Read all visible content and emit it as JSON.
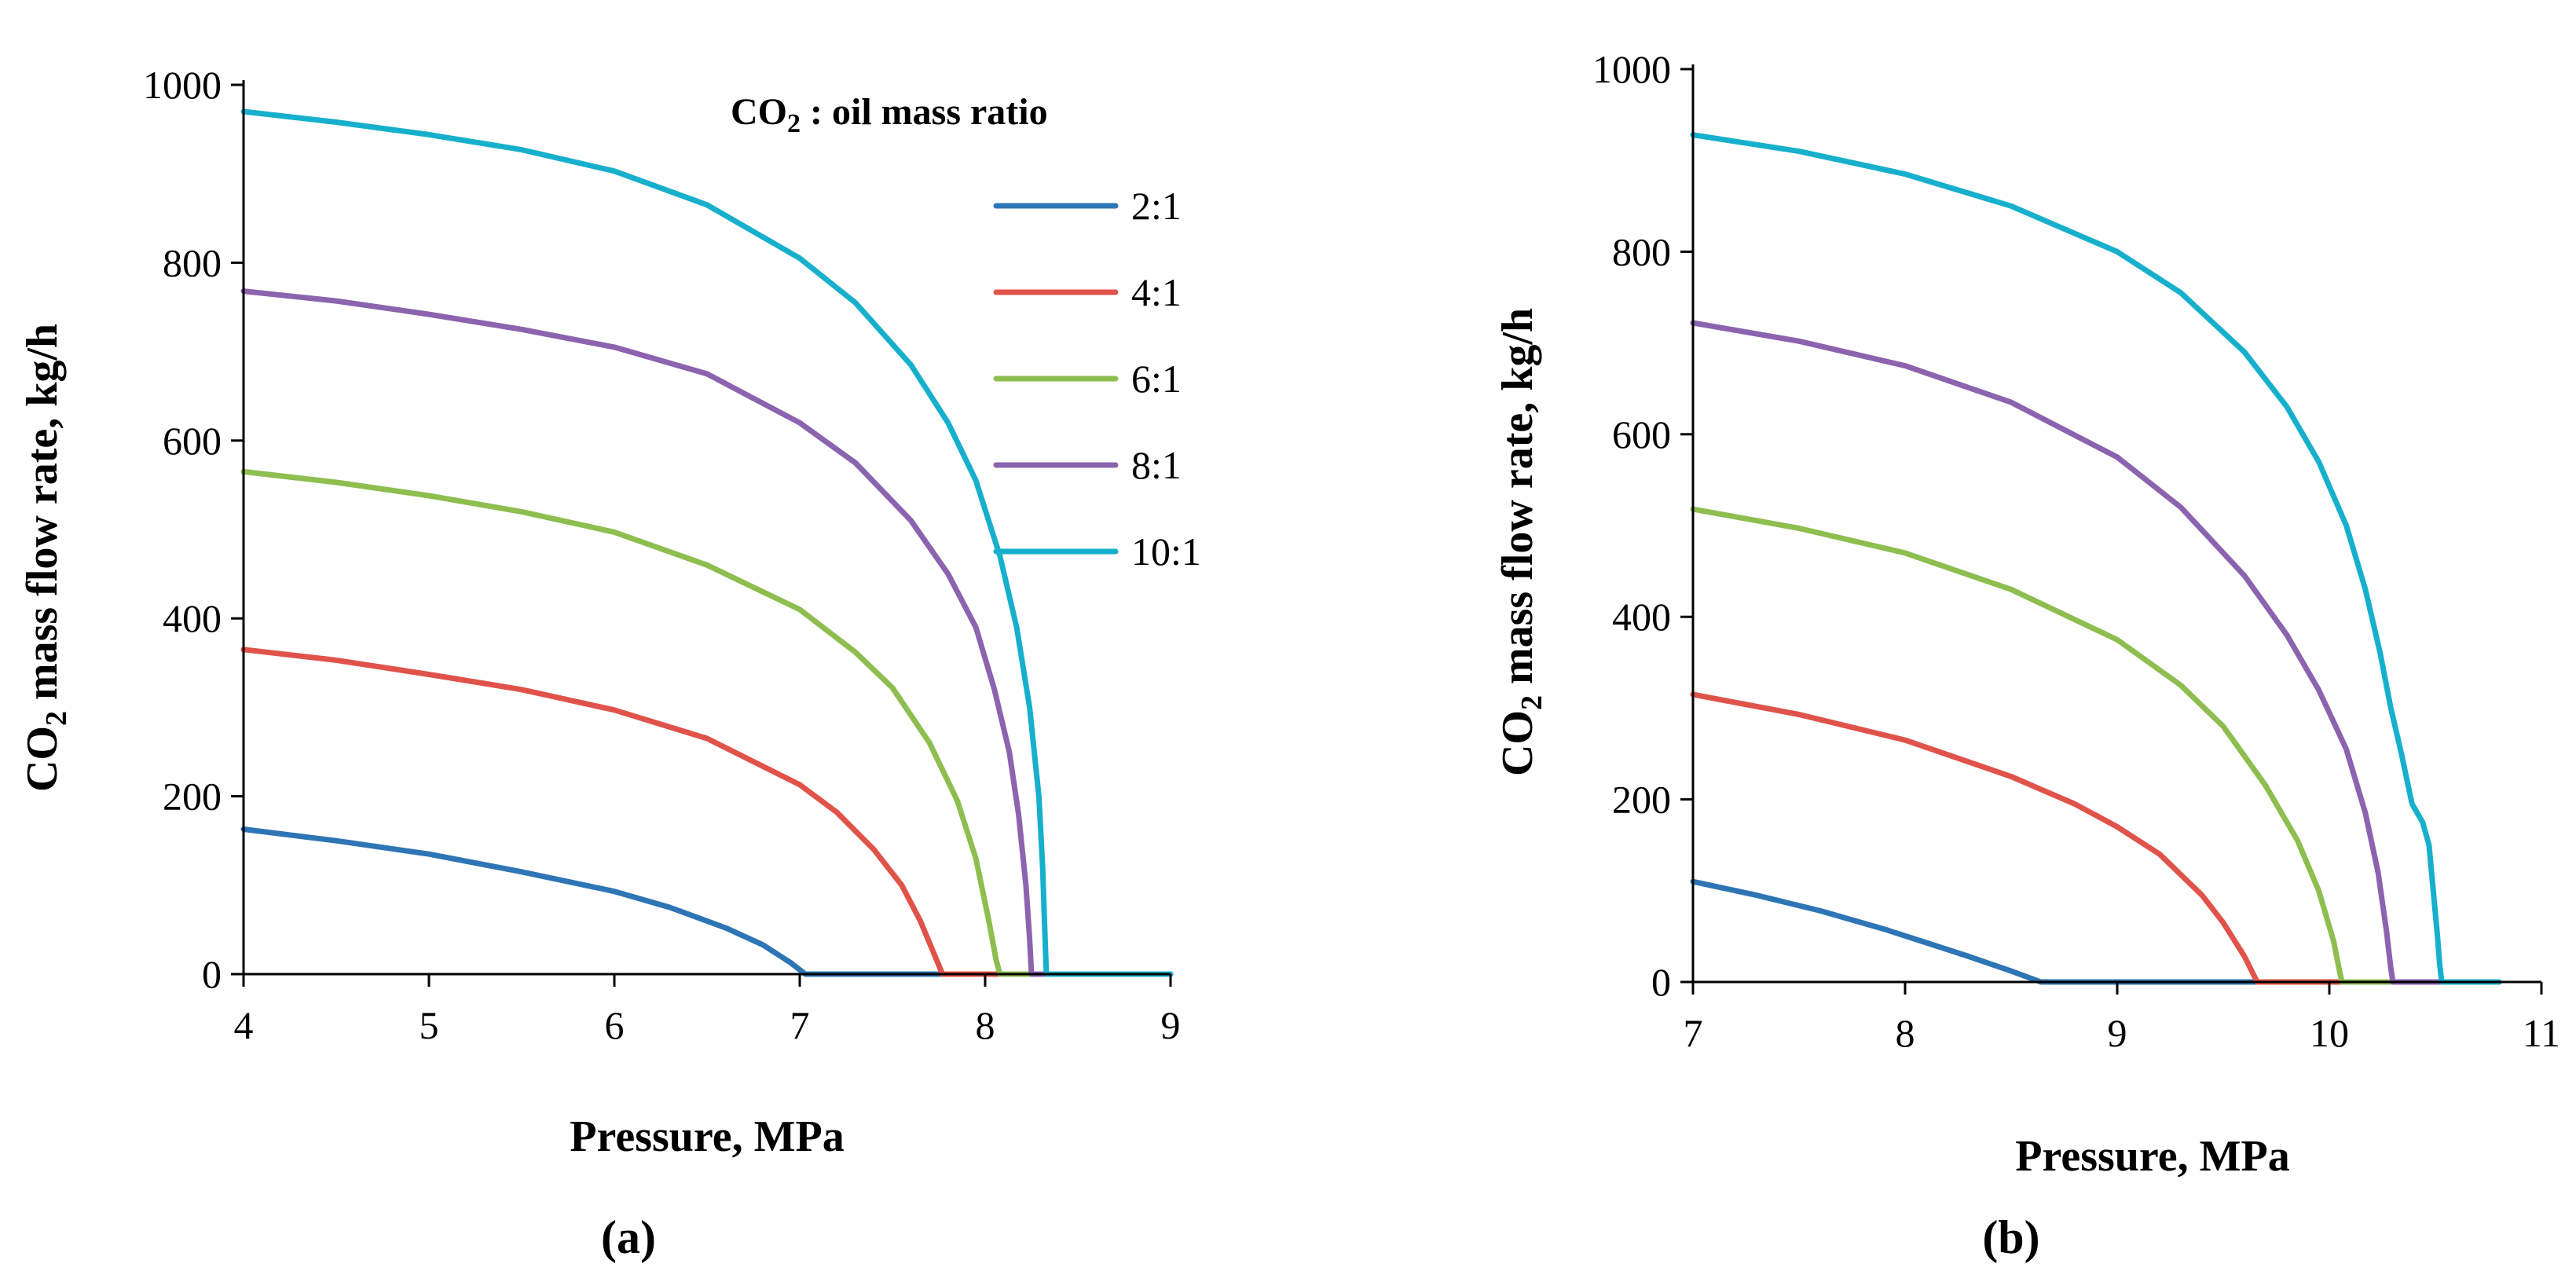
{
  "legend": {
    "title_prefix": "CO",
    "title_sub": "2",
    "title_suffix": " : oil mass ratio"
  },
  "y_axis_title": {
    "prefix": "CO",
    "sub": "2",
    "suffix": " mass flow rate, kg/h"
  },
  "series_colors": {
    "2:1": "#2E75B6",
    "4:1": "#E0534A",
    "6:1": "#8DBE4F",
    "8:1": "#8B63AE",
    "10:1": "#17B0CC"
  },
  "chart_data": [
    {
      "type": "line",
      "panel_label": "(a)",
      "xlabel": "Pressure, MPa",
      "ylabel": "CO2 mass flow rate, kg/h",
      "xlim": [
        4,
        9
      ],
      "ylim": [
        0,
        1000
      ],
      "x_ticks": [
        4,
        5,
        6,
        7,
        8,
        9
      ],
      "y_ticks": [
        0,
        200,
        400,
        600,
        800,
        1000
      ],
      "legend_position": "top-right",
      "series": [
        {
          "name": "2:1",
          "points": [
            [
              4,
              163
            ],
            [
              4.5,
              150
            ],
            [
              5,
              135
            ],
            [
              5.5,
              115
            ],
            [
              6,
              93
            ],
            [
              6.3,
              75
            ],
            [
              6.6,
              52
            ],
            [
              6.8,
              33
            ],
            [
              6.95,
              13
            ],
            [
              7.03,
              0
            ],
            [
              9,
              0
            ]
          ]
        },
        {
          "name": "4:1",
          "points": [
            [
              4,
              365
            ],
            [
              4.5,
              353
            ],
            [
              5,
              337
            ],
            [
              5.5,
              320
            ],
            [
              6,
              297
            ],
            [
              6.5,
              265
            ],
            [
              7,
              213
            ],
            [
              7.2,
              182
            ],
            [
              7.4,
              140
            ],
            [
              7.55,
              100
            ],
            [
              7.65,
              60
            ],
            [
              7.73,
              20
            ],
            [
              7.77,
              0
            ],
            [
              9,
              0
            ]
          ]
        },
        {
          "name": "6:1",
          "points": [
            [
              4,
              565
            ],
            [
              4.5,
              553
            ],
            [
              5,
              538
            ],
            [
              5.5,
              520
            ],
            [
              6,
              497
            ],
            [
              6.5,
              460
            ],
            [
              7,
              410
            ],
            [
              7.3,
              362
            ],
            [
              7.5,
              322
            ],
            [
              7.7,
              260
            ],
            [
              7.85,
              195
            ],
            [
              7.95,
              130
            ],
            [
              8.02,
              60
            ],
            [
              8.06,
              15
            ],
            [
              8.08,
              0
            ],
            [
              9,
              0
            ]
          ]
        },
        {
          "name": "8:1",
          "points": [
            [
              4,
              768
            ],
            [
              4.5,
              757
            ],
            [
              5,
              742
            ],
            [
              5.5,
              725
            ],
            [
              6,
              705
            ],
            [
              6.5,
              675
            ],
            [
              7,
              620
            ],
            [
              7.3,
              575
            ],
            [
              7.6,
              510
            ],
            [
              7.8,
              450
            ],
            [
              7.95,
              390
            ],
            [
              8.05,
              320
            ],
            [
              8.13,
              250
            ],
            [
              8.18,
              180
            ],
            [
              8.22,
              100
            ],
            [
              8.24,
              40
            ],
            [
              8.25,
              0
            ],
            [
              9,
              0
            ]
          ]
        },
        {
          "name": "10:1",
          "points": [
            [
              4,
              970
            ],
            [
              4.5,
              958
            ],
            [
              5,
              944
            ],
            [
              5.5,
              927
            ],
            [
              6,
              903
            ],
            [
              6.5,
              865
            ],
            [
              7,
              805
            ],
            [
              7.3,
              755
            ],
            [
              7.6,
              685
            ],
            [
              7.8,
              620
            ],
            [
              7.95,
              555
            ],
            [
              8.08,
              470
            ],
            [
              8.17,
              390
            ],
            [
              8.24,
              300
            ],
            [
              8.29,
              200
            ],
            [
              8.31,
              120
            ],
            [
              8.32,
              60
            ],
            [
              8.33,
              0
            ],
            [
              9,
              0
            ]
          ]
        }
      ]
    },
    {
      "type": "line",
      "panel_label": "(b)",
      "xlabel": "Pressure, MPa",
      "ylabel": "CO2 mass flow rate, kg/h",
      "xlim": [
        7,
        11
      ],
      "ylim": [
        0,
        1000
      ],
      "x_ticks": [
        7,
        8,
        9,
        10,
        11
      ],
      "y_ticks": [
        0,
        200,
        400,
        600,
        800,
        1000
      ],
      "series": [
        {
          "name": "2:1",
          "points": [
            [
              7,
              110
            ],
            [
              7.3,
              95
            ],
            [
              7.6,
              78
            ],
            [
              7.9,
              58
            ],
            [
              8.1,
              43
            ],
            [
              8.3,
              28
            ],
            [
              8.5,
              12
            ],
            [
              8.64,
              0
            ],
            [
              10.8,
              0
            ]
          ]
        },
        {
          "name": "4:1",
          "points": [
            [
              7,
              315
            ],
            [
              7.5,
              293
            ],
            [
              8,
              265
            ],
            [
              8.5,
              225
            ],
            [
              8.8,
              195
            ],
            [
              9,
              170
            ],
            [
              9.2,
              140
            ],
            [
              9.4,
              95
            ],
            [
              9.5,
              65
            ],
            [
              9.6,
              28
            ],
            [
              9.66,
              0
            ],
            [
              10.8,
              0
            ]
          ]
        },
        {
          "name": "6:1",
          "points": [
            [
              7,
              518
            ],
            [
              7.5,
              497
            ],
            [
              8,
              470
            ],
            [
              8.5,
              430
            ],
            [
              9,
              375
            ],
            [
              9.3,
              325
            ],
            [
              9.5,
              280
            ],
            [
              9.7,
              215
            ],
            [
              9.85,
              155
            ],
            [
              9.95,
              100
            ],
            [
              10.02,
              45
            ],
            [
              10.05,
              10
            ],
            [
              10.06,
              0
            ],
            [
              10.8,
              0
            ]
          ]
        },
        {
          "name": "8:1",
          "points": [
            [
              7,
              722
            ],
            [
              7.5,
              702
            ],
            [
              8,
              675
            ],
            [
              8.5,
              635
            ],
            [
              9,
              575
            ],
            [
              9.3,
              520
            ],
            [
              9.6,
              445
            ],
            [
              9.8,
              380
            ],
            [
              9.95,
              320
            ],
            [
              10.08,
              255
            ],
            [
              10.17,
              185
            ],
            [
              10.23,
              120
            ],
            [
              10.27,
              55
            ],
            [
              10.29,
              15
            ],
            [
              10.3,
              0
            ],
            [
              10.8,
              0
            ]
          ]
        },
        {
          "name": "10:1",
          "points": [
            [
              7,
              928
            ],
            [
              7.5,
              910
            ],
            [
              8,
              885
            ],
            [
              8.5,
              850
            ],
            [
              9,
              800
            ],
            [
              9.3,
              755
            ],
            [
              9.6,
              690
            ],
            [
              9.8,
              630
            ],
            [
              9.95,
              570
            ],
            [
              10.08,
              500
            ],
            [
              10.17,
              430
            ],
            [
              10.24,
              360
            ],
            [
              10.29,
              300
            ],
            [
              10.34,
              250
            ],
            [
              10.39,
              195
            ],
            [
              10.44,
              175
            ],
            [
              10.47,
              150
            ],
            [
              10.49,
              100
            ],
            [
              10.51,
              50
            ],
            [
              10.52,
              20
            ],
            [
              10.53,
              0
            ],
            [
              10.8,
              0
            ]
          ]
        }
      ]
    }
  ]
}
